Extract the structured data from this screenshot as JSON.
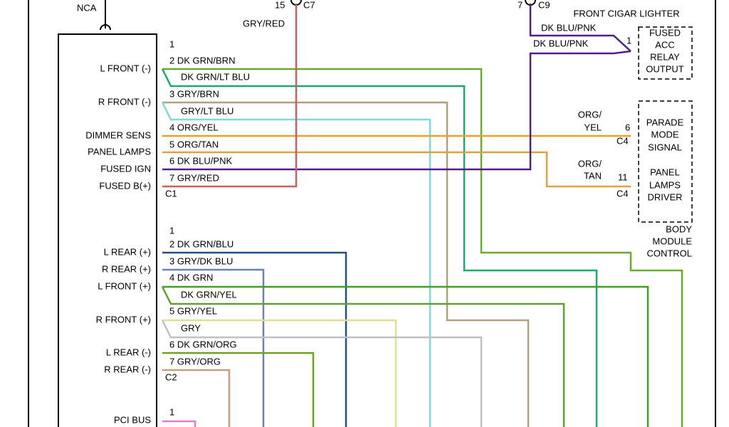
{
  "radio": {
    "nca": "NCA",
    "c1_functions": [
      "L FRONT (-)",
      "R FRONT (-)",
      "DIMMER SENS",
      "PANEL LAMPS",
      "FUSED IGN",
      "FUSED B(+)"
    ],
    "c2_functions": [
      "L REAR (+)",
      "R REAR (+)",
      "L FRONT (+)",
      "R FRONT (+)",
      "L REAR (-)",
      "R REAR (-)"
    ],
    "pci_bus": "PCI BUS"
  },
  "c1": {
    "name": "C1",
    "pins": [
      "1",
      "2 DK GRN/BRN",
      "3 GRY/BRN",
      "4 ORG/YEL",
      "5 ORG/TAN",
      "6 DK BLU/PNK",
      "7 GRY/RED"
    ],
    "extra_wires": [
      "DK GRN/LT BLU",
      "GRY/LT BLU"
    ]
  },
  "c2": {
    "name": "C2",
    "pins": [
      "1",
      "2 DK GRN/BLU",
      "3 GRY/DK BLU",
      "4 DK GRN",
      "5 GRY/YEL",
      "6 DK GRN/ORG",
      "7 GRY/ORG"
    ],
    "extra_wires": [
      "DK GRN/YEL",
      "GRY"
    ]
  },
  "c3": {
    "pin": "1"
  },
  "c7": {
    "pin": "15",
    "name": "C7",
    "wire": "GRY/RED"
  },
  "c9": {
    "pin": "7",
    "name": "C9",
    "wires": [
      "DK BLU/PNK",
      "DK BLU/PNK"
    ]
  },
  "cigar_lighter": {
    "title": "FRONT CIGAR LIGHTER",
    "pin": "1",
    "box": [
      "FUSED",
      "ACC",
      "RELAY",
      "OUTPUT"
    ]
  },
  "body_module": {
    "parade": {
      "wire": [
        "ORG/",
        "YEL"
      ],
      "pin": "6",
      "connector": "C4",
      "box": [
        "PARADE",
        "MODE",
        "SIGNAL"
      ]
    },
    "panel": {
      "wire": [
        "ORG/",
        "TAN"
      ],
      "pin": "11",
      "connector": "C4",
      "box": [
        "PANEL",
        "LAMPS",
        "DRIVER"
      ]
    },
    "label": [
      "BODY",
      "MODULE",
      "CONTROL"
    ]
  }
}
